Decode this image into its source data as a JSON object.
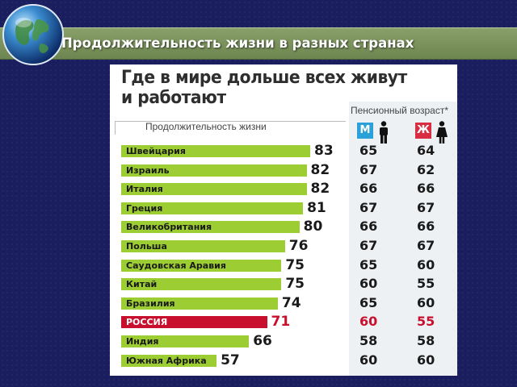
{
  "slide": {
    "title": "Продолжительность жизни в разных странах"
  },
  "colors": {
    "background": "#1a1d5e",
    "title_band": "#7a9160",
    "bar": "#9ccd32",
    "bar_highlight": "#c8102e",
    "men_badge": "#2aa1d8",
    "women_badge": "#d92d42"
  },
  "icons": [
    "globe-icon",
    "man-icon",
    "woman-icon"
  ],
  "chart_data": {
    "type": "bar",
    "orientation": "horizontal",
    "title_lines": [
      "Где в мире дольше всех живут",
      "и работают"
    ],
    "xlabel": "Продолжительность жизни",
    "pension_label": "Пенсионный возраст*",
    "men_label": "М",
    "women_label": "Ж",
    "highlight_category": "РОССИЯ",
    "categories": [
      "Швейцария",
      "Израиль",
      "Италия",
      "Греция",
      "Великобритания",
      "Польша",
      "Саудовская Аравия",
      "Китай",
      "Бразилия",
      "РОССИЯ",
      "Индия",
      "Южная Африка"
    ],
    "values": [
      83,
      82,
      82,
      81,
      80,
      76,
      75,
      75,
      74,
      71,
      66,
      57
    ],
    "pension_men": [
      65,
      67,
      66,
      67,
      66,
      67,
      65,
      60,
      65,
      60,
      58,
      60
    ],
    "pension_women": [
      64,
      62,
      66,
      67,
      66,
      67,
      60,
      55,
      60,
      55,
      58,
      60
    ]
  }
}
